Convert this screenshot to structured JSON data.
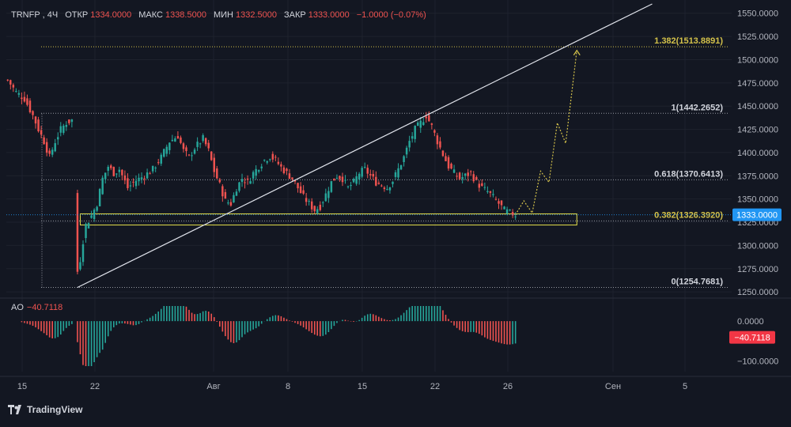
{
  "header": {
    "symbol": "TRNFP",
    "interval": "4Ч",
    "open_label": "ОТКР",
    "open": "1334.0000",
    "high_label": "МАКС",
    "high": "1338.5000",
    "low_label": "МИН",
    "low": "1332.5000",
    "close_label": "ЗАКР",
    "close": "1333.0000",
    "change": "−1.0000 (−0.07%)"
  },
  "price_axis": {
    "ticks": [
      "1550.0000",
      "1525.0000",
      "1500.0000",
      "1475.0000",
      "1450.0000",
      "1425.0000",
      "1400.0000",
      "1375.0000",
      "1350.0000",
      "1325.0000",
      "1300.0000",
      "1275.0000",
      "1250.0000"
    ],
    "current_price": "1333.0000"
  },
  "fib_levels": [
    {
      "label": "1.382(1513.8891)",
      "value": 1513.8891
    },
    {
      "label": "1(1442.2652)",
      "value": 1442.2652
    },
    {
      "label": "0.618(1370.6413)",
      "value": 1370.6413
    },
    {
      "label": "0.382(1326.3920)",
      "value": 1326.392
    },
    {
      "label": "0(1254.7681)",
      "value": 1254.7681
    }
  ],
  "time_axis": [
    "15",
    "22",
    "Авг",
    "8",
    "15",
    "22",
    "26",
    "Сен",
    "5"
  ],
  "indicator": {
    "name": "AO",
    "value": "−40.7118",
    "ticks": [
      "0.0000",
      "−100.0000"
    ],
    "badge": "−40.7118"
  },
  "branding": {
    "name": "TradingView"
  },
  "colors": {
    "background": "#131722",
    "up": "#26a69a",
    "down": "#ef5350",
    "fib": "#d4c24a",
    "current_price_badge": "#2196f3",
    "ao_badge": "#f23645"
  },
  "chart_data": {
    "type": "candlestick",
    "y_range": [
      1245,
      1560
    ],
    "close_path": [
      [
        0,
        1478
      ],
      [
        3,
        1465
      ],
      [
        6,
        1458
      ],
      [
        9,
        1440
      ],
      [
        11,
        1425
      ],
      [
        13,
        1412
      ],
      [
        15,
        1395
      ],
      [
        17,
        1412
      ],
      [
        19,
        1425
      ],
      [
        21,
        1432
      ],
      [
        23,
        1435
      ],
      [
        25,
        1272
      ],
      [
        26,
        1285
      ],
      [
        27,
        1305
      ],
      [
        28,
        1322
      ],
      [
        30,
        1332
      ],
      [
        32,
        1345
      ],
      [
        34,
        1372
      ],
      [
        36,
        1385
      ],
      [
        38,
        1378
      ],
      [
        40,
        1382
      ],
      [
        43,
        1362
      ],
      [
        46,
        1370
      ],
      [
        49,
        1375
      ],
      [
        52,
        1382
      ],
      [
        55,
        1395
      ],
      [
        58,
        1412
      ],
      [
        61,
        1418
      ],
      [
        63,
        1402
      ],
      [
        65,
        1395
      ],
      [
        67,
        1405
      ],
      [
        70,
        1415
      ],
      [
        72,
        1402
      ],
      [
        74,
        1380
      ],
      [
        76,
        1365
      ],
      [
        78,
        1348
      ],
      [
        80,
        1345
      ],
      [
        82,
        1362
      ],
      [
        84,
        1372
      ],
      [
        86,
        1368
      ],
      [
        88,
        1378
      ],
      [
        90,
        1385
      ],
      [
        92,
        1392
      ],
      [
        94,
        1396
      ],
      [
        96,
        1392
      ],
      [
        98,
        1384
      ],
      [
        100,
        1378
      ],
      [
        102,
        1372
      ],
      [
        104,
        1362
      ],
      [
        106,
        1352
      ],
      [
        108,
        1345
      ],
      [
        110,
        1338
      ],
      [
        112,
        1342
      ],
      [
        114,
        1355
      ],
      [
        116,
        1368
      ],
      [
        118,
        1375
      ],
      [
        120,
        1372
      ],
      [
        122,
        1362
      ],
      [
        124,
        1368
      ],
      [
        126,
        1378
      ],
      [
        128,
        1382
      ],
      [
        130,
        1375
      ],
      [
        132,
        1368
      ],
      [
        134,
        1365
      ],
      [
        136,
        1362
      ],
      [
        138,
        1370
      ],
      [
        140,
        1382
      ],
      [
        142,
        1395
      ],
      [
        144,
        1412
      ],
      [
        146,
        1425
      ],
      [
        148,
        1432
      ],
      [
        150,
        1440
      ],
      [
        152,
        1428
      ],
      [
        154,
        1412
      ],
      [
        156,
        1398
      ],
      [
        158,
        1385
      ],
      [
        160,
        1378
      ],
      [
        162,
        1372
      ],
      [
        164,
        1375
      ],
      [
        166,
        1378
      ],
      [
        168,
        1368
      ],
      [
        170,
        1362
      ],
      [
        172,
        1358
      ],
      [
        174,
        1352
      ],
      [
        176,
        1345
      ],
      [
        178,
        1338
      ],
      [
        180,
        1335
      ],
      [
        182,
        1333
      ]
    ],
    "projection": [
      [
        182,
        1333
      ],
      [
        185,
        1348
      ],
      [
        188,
        1335
      ],
      [
        191,
        1380
      ],
      [
        194,
        1368
      ],
      [
        197,
        1432
      ],
      [
        200,
        1410
      ],
      [
        204,
        1510
      ]
    ],
    "trendline": {
      "from": [
        25,
        1254.77
      ],
      "to": [
        231,
        1560
      ]
    },
    "zone": {
      "from_bar": 26,
      "to_bar": 204,
      "low": 1322,
      "high": 1334
    },
    "ao_zero": 0,
    "ao_range": [
      -115,
      40
    ]
  }
}
